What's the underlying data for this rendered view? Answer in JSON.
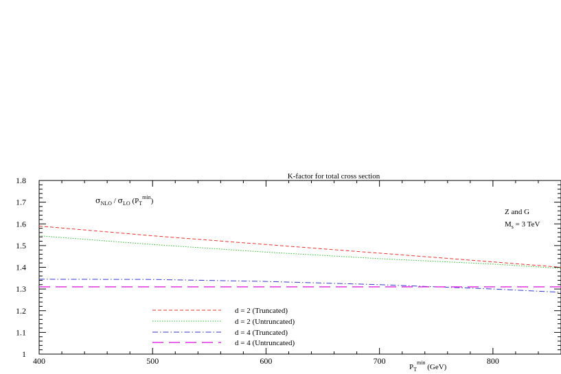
{
  "chart_data": {
    "type": "line",
    "title": "K-factor for total cross section",
    "ylabel": {
      "sigma": "σ",
      "nlo": "NLO",
      "slash": " / ",
      "lo": "LO",
      "paren_open": " (P",
      "sub_t": "T",
      "sup_min": "min",
      "paren_close": ")"
    },
    "xlabel": {
      "p": "P",
      "sub_t": "T",
      "sup_min": "min",
      "unit": " (GeV)"
    },
    "annotation": {
      "line1": "Z and G",
      "line2_m": "M",
      "line2_sub": "s",
      "line2_rest": " = 3 TeV"
    },
    "xlim": [
      400,
      860
    ],
    "ylim": [
      1.0,
      1.8
    ],
    "x_ticks": [
      "400",
      "500",
      "600",
      "700",
      "800"
    ],
    "y_ticks": [
      "1",
      "1.1",
      "1.2",
      "1.3",
      "1.4",
      "1.5",
      "1.6",
      "1.7",
      "1.8"
    ],
    "x_tick_values": [
      400,
      500,
      600,
      700,
      800
    ],
    "y_tick_values": [
      1.0,
      1.1,
      1.2,
      1.3,
      1.4,
      1.5,
      1.6,
      1.7,
      1.8
    ],
    "legend_placement": "bottom-left",
    "series": [
      {
        "name": "d = 2 (Truncated)",
        "color": "#e8302c",
        "x": [
          400,
          500,
          600,
          700,
          800,
          860
        ],
        "y": [
          1.59,
          1.545,
          1.505,
          1.465,
          1.425,
          1.4
        ]
      },
      {
        "name": "d = 2 (Untruncated)",
        "color": "#2bbf2b",
        "x": [
          400,
          500,
          600,
          700,
          800,
          860
        ],
        "y": [
          1.545,
          1.505,
          1.47,
          1.44,
          1.415,
          1.395
        ]
      },
      {
        "name": "d = 4 (Truncated)",
        "color": "#3333cc",
        "x": [
          400,
          500,
          600,
          700,
          800,
          860
        ],
        "y": [
          1.345,
          1.344,
          1.335,
          1.32,
          1.3,
          1.285
        ]
      },
      {
        "name": "d = 4 (Untruncated)",
        "color": "#e030e0",
        "x": [
          400,
          500,
          600,
          700,
          800,
          860
        ],
        "y": [
          1.31,
          1.31,
          1.31,
          1.31,
          1.31,
          1.31
        ]
      }
    ]
  }
}
